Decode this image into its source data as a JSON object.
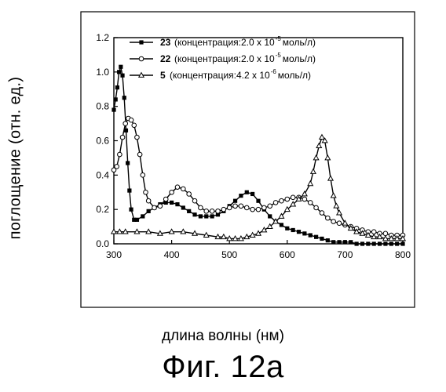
{
  "chart_data": {
    "type": "line",
    "xlabel": "длина волны (нм)",
    "ylabel": "поглощение (отн. ед.)",
    "caption": "Фиг. 12а",
    "xlim": [
      300,
      800
    ],
    "ylim": [
      0.0,
      1.2
    ],
    "xticks": [
      300,
      400,
      500,
      600,
      700,
      800
    ],
    "yticks": [
      0.0,
      0.2,
      0.4,
      0.6,
      0.8,
      1.0,
      1.2
    ],
    "grid": false,
    "legend_position": "top-right",
    "series": [
      {
        "name": "23",
        "label_rest": "(концентрация:2.0 x 10",
        "exp": "-5",
        "unit": "моль/л)",
        "marker": "filled-square",
        "x": [
          300,
          303,
          306,
          309,
          312,
          315,
          318,
          321,
          324,
          327,
          330,
          335,
          340,
          350,
          360,
          370,
          380,
          390,
          400,
          410,
          420,
          430,
          440,
          450,
          460,
          470,
          480,
          490,
          500,
          510,
          520,
          530,
          540,
          550,
          560,
          570,
          580,
          590,
          600,
          610,
          620,
          630,
          640,
          650,
          660,
          670,
          680,
          690,
          700,
          710,
          720,
          730,
          740,
          750,
          760,
          770,
          780,
          790,
          800
        ],
        "y": [
          0.78,
          0.84,
          0.91,
          1.0,
          1.03,
          0.98,
          0.85,
          0.66,
          0.47,
          0.31,
          0.2,
          0.14,
          0.14,
          0.16,
          0.19,
          0.21,
          0.23,
          0.24,
          0.24,
          0.23,
          0.21,
          0.19,
          0.17,
          0.16,
          0.16,
          0.16,
          0.17,
          0.19,
          0.22,
          0.25,
          0.28,
          0.3,
          0.29,
          0.25,
          0.2,
          0.16,
          0.13,
          0.11,
          0.09,
          0.08,
          0.07,
          0.06,
          0.05,
          0.04,
          0.03,
          0.02,
          0.01,
          0.01,
          0.01,
          0.01,
          0.0,
          0.0,
          0.0,
          0.0,
          0.0,
          0.0,
          0.0,
          0.0,
          0.0
        ]
      },
      {
        "name": "22",
        "label_rest": "(концентрация:2.0 x 10",
        "exp": "-5",
        "unit": "моль/л)",
        "marker": "open-circle",
        "x": [
          300,
          305,
          310,
          315,
          320,
          325,
          330,
          335,
          340,
          345,
          350,
          355,
          360,
          370,
          380,
          390,
          400,
          410,
          420,
          430,
          440,
          450,
          460,
          470,
          480,
          490,
          500,
          510,
          520,
          530,
          540,
          550,
          560,
          570,
          580,
          590,
          600,
          610,
          620,
          630,
          640,
          650,
          660,
          670,
          680,
          690,
          700,
          710,
          720,
          730,
          740,
          750,
          760,
          770,
          780,
          790,
          800
        ],
        "y": [
          0.43,
          0.45,
          0.52,
          0.62,
          0.7,
          0.73,
          0.72,
          0.69,
          0.62,
          0.52,
          0.4,
          0.3,
          0.25,
          0.21,
          0.22,
          0.26,
          0.3,
          0.33,
          0.32,
          0.29,
          0.25,
          0.21,
          0.19,
          0.19,
          0.19,
          0.2,
          0.21,
          0.22,
          0.22,
          0.21,
          0.2,
          0.2,
          0.21,
          0.22,
          0.24,
          0.25,
          0.26,
          0.27,
          0.27,
          0.26,
          0.24,
          0.21,
          0.18,
          0.15,
          0.13,
          0.12,
          0.11,
          0.1,
          0.09,
          0.08,
          0.07,
          0.07,
          0.06,
          0.06,
          0.05,
          0.05,
          0.05
        ]
      },
      {
        "name": "5",
        "label_rest": "(концентрация:4.2 x 10",
        "exp": "-6",
        "unit": "моль/л)",
        "marker": "open-triangle",
        "x": [
          300,
          310,
          320,
          340,
          360,
          380,
          400,
          420,
          440,
          460,
          480,
          490,
          500,
          510,
          520,
          530,
          540,
          550,
          560,
          570,
          580,
          590,
          600,
          610,
          620,
          630,
          640,
          645,
          650,
          655,
          660,
          665,
          670,
          675,
          680,
          685,
          690,
          700,
          710,
          720,
          730,
          740,
          750,
          760,
          770,
          780,
          790,
          800
        ],
        "y": [
          0.07,
          0.07,
          0.07,
          0.07,
          0.07,
          0.06,
          0.07,
          0.07,
          0.06,
          0.05,
          0.04,
          0.04,
          0.03,
          0.03,
          0.03,
          0.04,
          0.05,
          0.06,
          0.08,
          0.1,
          0.13,
          0.16,
          0.2,
          0.23,
          0.26,
          0.29,
          0.35,
          0.42,
          0.5,
          0.57,
          0.62,
          0.6,
          0.5,
          0.38,
          0.28,
          0.22,
          0.18,
          0.12,
          0.09,
          0.07,
          0.06,
          0.05,
          0.04,
          0.04,
          0.03,
          0.03,
          0.03,
          0.03
        ]
      }
    ]
  }
}
